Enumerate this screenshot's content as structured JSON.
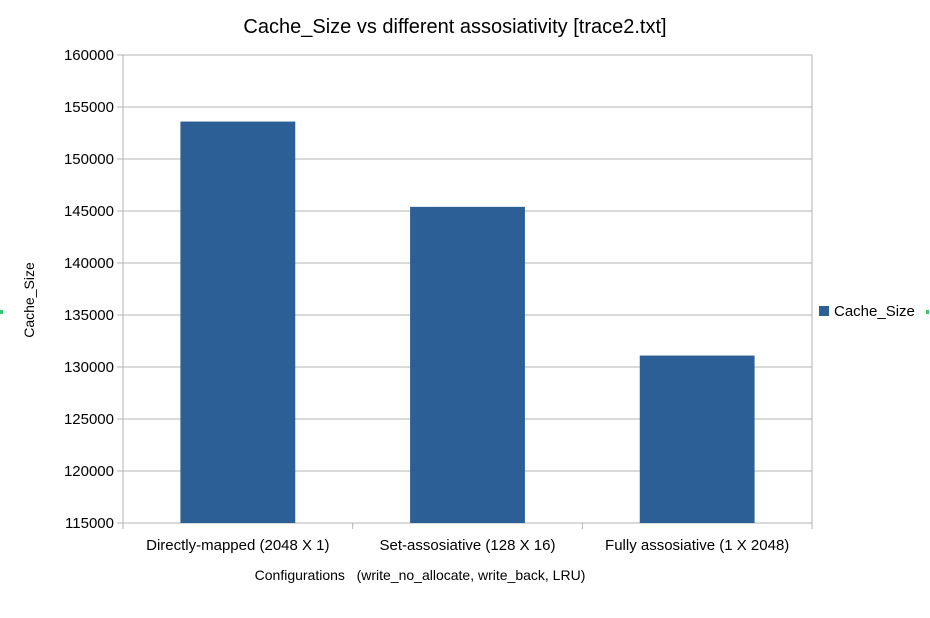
{
  "chart_data": {
    "type": "bar",
    "title": "Cache_Size vs different assosiativity     [trace2.txt]",
    "xlabel": "Configurations   (write_no_allocate, write_back, LRU)",
    "ylabel": "Cache_Size",
    "categories": [
      "Directly-mapped (2048 X 1)",
      "Set-assosiative (128 X 16)",
      "Fully assosiative (1 X 2048)"
    ],
    "series": [
      {
        "name": "Cache_Size",
        "color": "#2d5f97",
        "values": [
          153600,
          145400,
          131100
        ]
      }
    ],
    "ylim": [
      115000,
      160000
    ],
    "yticks": [
      115000,
      120000,
      125000,
      130000,
      135000,
      140000,
      145000,
      150000,
      155000,
      160000
    ],
    "grid": true,
    "legend": "right"
  }
}
